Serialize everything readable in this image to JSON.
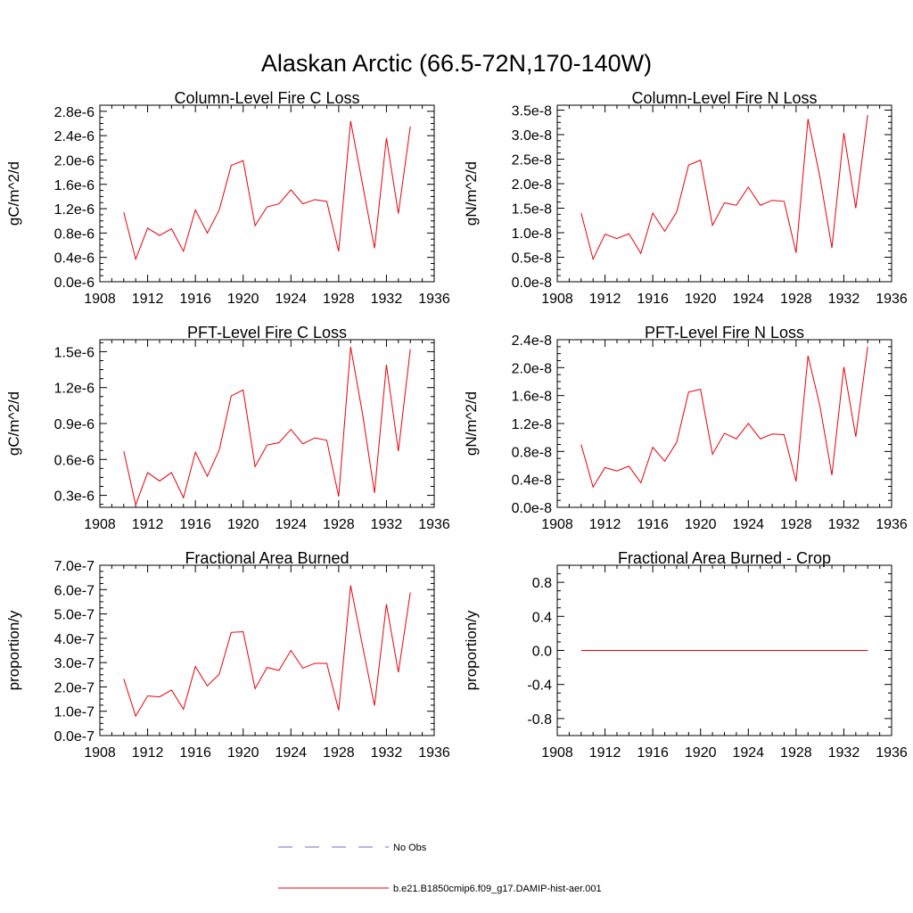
{
  "figure": {
    "title": "Alaskan Arctic (66.5-72N,170-140W)"
  },
  "legend": [
    {
      "label": "No Obs",
      "color": "#7070b8",
      "dash": "dashed"
    },
    {
      "label": "b.e21.B1850cmip6.f09_g17.DAMIP-hist-aer.001",
      "color": "#e8000b",
      "dash": "solid"
    }
  ],
  "colors": {
    "series": "#e8000b",
    "axis": "#000000"
  },
  "chart_data": [
    {
      "type": "line",
      "title": "Column-Level Fire C Loss",
      "ylabel": "gC/m^2/d",
      "xlim": [
        1908,
        1936
      ],
      "xticks": [
        1908,
        1912,
        1916,
        1920,
        1924,
        1928,
        1932,
        1936
      ],
      "ylim": [
        0,
        2.9e-06
      ],
      "yticks": [
        0,
        4e-07,
        8e-07,
        1.2e-06,
        1.6e-06,
        2e-06,
        2.4e-06,
        2.8e-06
      ],
      "ytick_labels": [
        "0.0e-6",
        "0.4e-6",
        "0.8e-6",
        "1.2e-6",
        "1.6e-6",
        "2.0e-6",
        "2.4e-6",
        "2.8e-6"
      ],
      "x": [
        1910,
        1911,
        1912,
        1913,
        1914,
        1915,
        1916,
        1917,
        1918,
        1919,
        1920,
        1921,
        1922,
        1923,
        1924,
        1925,
        1926,
        1927,
        1928,
        1929,
        1930,
        1931,
        1932,
        1933,
        1934
      ],
      "series": [
        {
          "values": [
            1.14e-06,
            3.7e-07,
            8.8e-07,
            7.6e-07,
            8.7e-07,
            5e-07,
            1.18e-06,
            8e-07,
            1.18e-06,
            1.91e-06,
            1.99e-06,
            9.2e-07,
            1.23e-06,
            1.28e-06,
            1.51e-06,
            1.28e-06,
            1.35e-06,
            1.32e-06,
            5e-07,
            2.64e-06,
            1.6e-06,
            5.5e-07,
            2.36e-06,
            1.12e-06,
            2.55e-06
          ]
        }
      ]
    },
    {
      "type": "line",
      "title": "Column-Level Fire N Loss",
      "ylabel": "gN/m^2/d",
      "xlim": [
        1908,
        1936
      ],
      "xticks": [
        1908,
        1912,
        1916,
        1920,
        1924,
        1928,
        1932,
        1936
      ],
      "ylim": [
        0,
        3.6e-08
      ],
      "yticks": [
        0,
        5e-09,
        1e-08,
        1.5e-08,
        2e-08,
        2.5e-08,
        3e-08,
        3.5e-08
      ],
      "ytick_labels": [
        "0.0e-8",
        "0.5e-8",
        "1.0e-8",
        "1.5e-8",
        "2.0e-8",
        "2.5e-8",
        "3.0e-8",
        "3.5e-8"
      ],
      "x": [
        1910,
        1911,
        1912,
        1913,
        1914,
        1915,
        1916,
        1917,
        1918,
        1919,
        1920,
        1921,
        1922,
        1923,
        1924,
        1925,
        1926,
        1927,
        1928,
        1929,
        1930,
        1931,
        1932,
        1933,
        1934
      ],
      "series": [
        {
          "values": [
            1.4e-08,
            4.6e-09,
            9.7e-09,
            8.8e-09,
            9.8e-09,
            5.8e-09,
            1.4e-08,
            1.03e-08,
            1.42e-08,
            2.38e-08,
            2.48e-08,
            1.15e-08,
            1.61e-08,
            1.56e-08,
            1.93e-08,
            1.56e-08,
            1.66e-08,
            1.64e-08,
            5.9e-09,
            3.32e-08,
            2.13e-08,
            6.9e-09,
            3.03e-08,
            1.5e-08,
            3.4e-08
          ]
        }
      ]
    },
    {
      "type": "line",
      "title": "PFT-Level Fire C Loss",
      "ylabel": "gC/m^2/d",
      "xlim": [
        1908,
        1936
      ],
      "xticks": [
        1908,
        1912,
        1916,
        1920,
        1924,
        1928,
        1932,
        1936
      ],
      "ylim": [
        2e-07,
        1.6e-06
      ],
      "yticks": [
        3e-07,
        6e-07,
        9e-07,
        1.2e-06,
        1.5e-06
      ],
      "ytick_labels": [
        "0.3e-6",
        "0.6e-6",
        "0.9e-6",
        "1.2e-6",
        "1.5e-6"
      ],
      "x": [
        1910,
        1911,
        1912,
        1913,
        1914,
        1915,
        1916,
        1917,
        1918,
        1919,
        1920,
        1921,
        1922,
        1923,
        1924,
        1925,
        1926,
        1927,
        1928,
        1929,
        1930,
        1931,
        1932,
        1933,
        1934
      ],
      "series": [
        {
          "values": [
            6.7e-07,
            2.2e-07,
            4.9e-07,
            4.2e-07,
            4.9e-07,
            2.8e-07,
            6.6e-07,
            4.6e-07,
            6.8e-07,
            1.13e-06,
            1.18e-06,
            5.4e-07,
            7.2e-07,
            7.4e-07,
            8.5e-07,
            7.3e-07,
            7.8e-07,
            7.6e-07,
            2.9e-07,
            1.54e-06,
            9.8e-07,
            3.2e-07,
            1.39e-06,
            6.7e-07,
            1.52e-06
          ]
        }
      ]
    },
    {
      "type": "line",
      "title": "PFT-Level Fire N Loss",
      "ylabel": "gN/m^2/d",
      "xlim": [
        1908,
        1936
      ],
      "xticks": [
        1908,
        1912,
        1916,
        1920,
        1924,
        1928,
        1932,
        1936
      ],
      "ylim": [
        0,
        2.4e-08
      ],
      "yticks": [
        0,
        4e-09,
        8e-09,
        1.2e-08,
        1.6e-08,
        2e-08,
        2.4e-08
      ],
      "ytick_labels": [
        "0.0e-8",
        "0.4e-8",
        "0.8e-8",
        "1.2e-8",
        "1.6e-8",
        "2.0e-8",
        "2.4e-8"
      ],
      "x": [
        1910,
        1911,
        1912,
        1913,
        1914,
        1915,
        1916,
        1917,
        1918,
        1919,
        1920,
        1921,
        1922,
        1923,
        1924,
        1925,
        1926,
        1927,
        1928,
        1929,
        1930,
        1931,
        1932,
        1933,
        1934
      ],
      "series": [
        {
          "values": [
            9e-09,
            2.9e-09,
            5.7e-09,
            5.2e-09,
            5.9e-09,
            3.5e-09,
            8.6e-09,
            6.6e-09,
            9.3e-09,
            1.65e-08,
            1.69e-08,
            7.6e-09,
            1.06e-08,
            9.8e-09,
            1.2e-08,
            9.8e-09,
            1.05e-08,
            1.04e-08,
            3.7e-09,
            2.17e-08,
            1.45e-08,
            4.6e-09,
            2.01e-08,
            1.01e-08,
            2.3e-08
          ]
        }
      ]
    },
    {
      "type": "line",
      "title": "Fractional Area Burned",
      "ylabel": "proportion/y",
      "xlim": [
        1908,
        1936
      ],
      "xticks": [
        1908,
        1912,
        1916,
        1920,
        1924,
        1928,
        1932,
        1936
      ],
      "ylim": [
        0,
        7e-07
      ],
      "yticks": [
        0,
        1e-07,
        2e-07,
        3e-07,
        4e-07,
        5e-07,
        6e-07,
        7e-07
      ],
      "ytick_labels": [
        "0.0e-7",
        "1.0e-7",
        "2.0e-7",
        "3.0e-7",
        "4.0e-7",
        "5.0e-7",
        "6.0e-7",
        "7.0e-7"
      ],
      "x": [
        1910,
        1911,
        1912,
        1913,
        1914,
        1915,
        1916,
        1917,
        1918,
        1919,
        1920,
        1921,
        1922,
        1923,
        1924,
        1925,
        1926,
        1927,
        1928,
        1929,
        1930,
        1931,
        1932,
        1933,
        1934
      ],
      "series": [
        {
          "values": [
            2.33e-07,
            8e-08,
            1.63e-07,
            1.59e-07,
            1.87e-07,
            1.08e-07,
            2.84e-07,
            2.04e-07,
            2.53e-07,
            4.24e-07,
            4.27e-07,
            1.93e-07,
            2.8e-07,
            2.68e-07,
            3.5e-07,
            2.77e-07,
            2.97e-07,
            2.97e-07,
            1.04e-07,
            6.17e-07,
            3.68e-07,
            1.23e-07,
            5.4e-07,
            2.6e-07,
            5.88e-07
          ]
        }
      ]
    },
    {
      "type": "line",
      "title": "Fractional Area Burned - Crop",
      "ylabel": "proportion/y",
      "xlim": [
        1908,
        1936
      ],
      "xticks": [
        1908,
        1912,
        1916,
        1920,
        1924,
        1928,
        1932,
        1936
      ],
      "ylim": [
        -1,
        1
      ],
      "yticks": [
        -0.8,
        -0.4,
        0,
        0.4,
        0.8
      ],
      "ytick_labels": [
        "-0.8",
        "-0.4",
        "0.0",
        "0.4",
        "0.8"
      ],
      "x": [
        1910,
        1911,
        1912,
        1913,
        1914,
        1915,
        1916,
        1917,
        1918,
        1919,
        1920,
        1921,
        1922,
        1923,
        1924,
        1925,
        1926,
        1927,
        1928,
        1929,
        1930,
        1931,
        1932,
        1933,
        1934
      ],
      "series": [
        {
          "values": [
            0,
            0,
            0,
            0,
            0,
            0,
            0,
            0,
            0,
            0,
            0,
            0,
            0,
            0,
            0,
            0,
            0,
            0,
            0,
            0,
            0,
            0,
            0,
            0,
            0
          ]
        }
      ]
    }
  ]
}
